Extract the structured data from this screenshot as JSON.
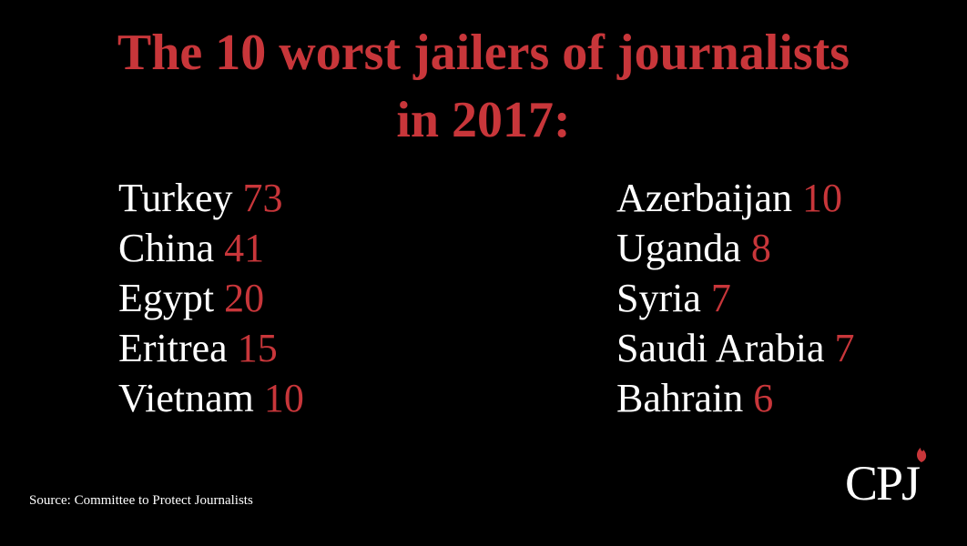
{
  "title": [
    "The 10 worst jailers of journalists",
    "in 2017:"
  ],
  "columns": [
    [
      {
        "name": "Turkey",
        "count": 73
      },
      {
        "name": "China",
        "count": 41
      },
      {
        "name": "Egypt",
        "count": 20
      },
      {
        "name": "Eritrea",
        "count": 15
      },
      {
        "name": "Vietnam",
        "count": 10
      }
    ],
    [
      {
        "name": "Azerbaijan",
        "count": 10
      },
      {
        "name": "Uganda",
        "count": 8
      },
      {
        "name": "Syria",
        "count": 7
      },
      {
        "name": "Saudi Arabia",
        "count": 7
      },
      {
        "name": "Bahrain",
        "count": 6
      }
    ]
  ],
  "source": "Source: Committee to Protect Journalists",
  "logo": "CPJ"
}
